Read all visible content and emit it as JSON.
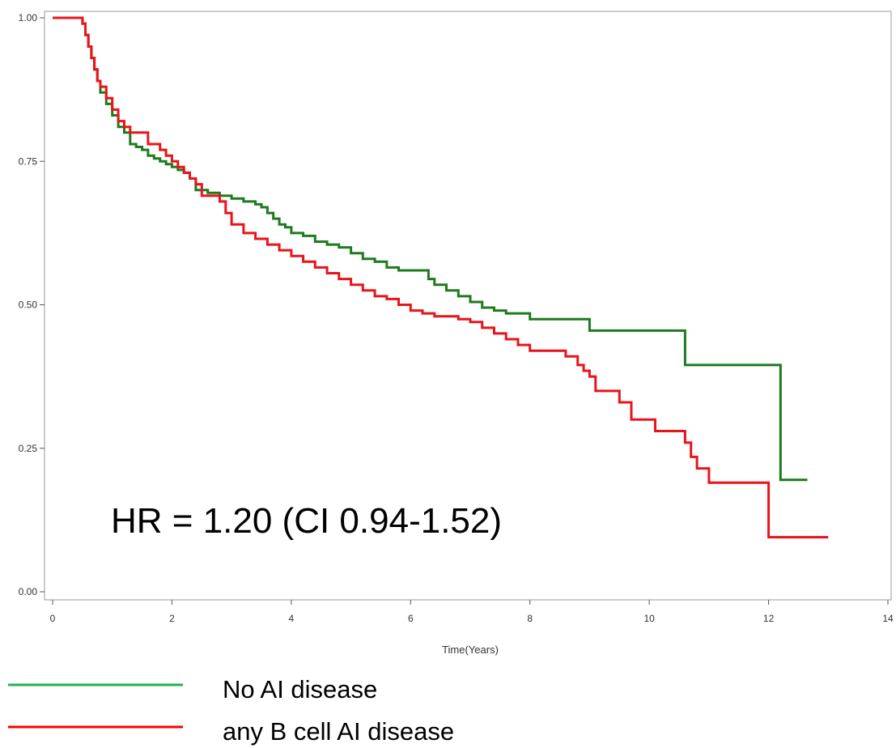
{
  "chart_data": {
    "type": "line",
    "step": true,
    "xlabel": "Time(Years)",
    "ylabel": "",
    "xlim": [
      0,
      14
    ],
    "ylim": [
      0,
      1
    ],
    "xticks": [
      0,
      2,
      4,
      6,
      8,
      10,
      12,
      14
    ],
    "xtick_labels": [
      "0",
      "2",
      "4",
      "6",
      "8",
      "10",
      "12",
      "14"
    ],
    "yticks": [
      0,
      0.25,
      0.5,
      0.75,
      1
    ],
    "ytick_labels": [
      "0.00",
      "0.25",
      "0.50",
      "0.75",
      "1.00"
    ],
    "annotation": "HR = 1.20 (CI 0.94-1.52)",
    "legend_position": "bottom-left",
    "series": [
      {
        "name": "No AI disease",
        "color": "#1f7a1f",
        "legend_color": "#22b14c",
        "x": [
          0,
          0.5,
          0.55,
          0.6,
          0.65,
          0.7,
          0.75,
          0.8,
          0.9,
          1.0,
          1.1,
          1.2,
          1.3,
          1.4,
          1.5,
          1.6,
          1.7,
          1.8,
          1.9,
          2.0,
          2.1,
          2.2,
          2.3,
          2.4,
          2.6,
          2.8,
          3.0,
          3.2,
          3.4,
          3.5,
          3.6,
          3.7,
          3.8,
          3.9,
          4.0,
          4.2,
          4.4,
          4.6,
          4.8,
          5.0,
          5.2,
          5.4,
          5.6,
          5.8,
          6.0,
          6.3,
          6.4,
          6.6,
          6.8,
          7.0,
          7.2,
          7.4,
          7.6,
          8.0,
          8.5,
          9.0,
          9.5,
          10.0,
          10.6,
          11.0,
          12.2,
          12.65
        ],
        "y": [
          1.0,
          0.99,
          0.97,
          0.95,
          0.93,
          0.91,
          0.89,
          0.87,
          0.85,
          0.83,
          0.81,
          0.8,
          0.78,
          0.775,
          0.77,
          0.76,
          0.755,
          0.75,
          0.745,
          0.74,
          0.735,
          0.73,
          0.72,
          0.7,
          0.695,
          0.69,
          0.685,
          0.68,
          0.675,
          0.67,
          0.66,
          0.65,
          0.64,
          0.635,
          0.625,
          0.62,
          0.61,
          0.605,
          0.6,
          0.59,
          0.58,
          0.575,
          0.565,
          0.56,
          0.56,
          0.545,
          0.535,
          0.525,
          0.515,
          0.505,
          0.495,
          0.49,
          0.485,
          0.475,
          0.475,
          0.455,
          0.455,
          0.455,
          0.395,
          0.395,
          0.195,
          0.195
        ]
      },
      {
        "name": "any B cell AI disease",
        "color": "#e8141b",
        "legend_color": "#ff0000",
        "x": [
          0,
          0.5,
          0.55,
          0.6,
          0.65,
          0.7,
          0.75,
          0.8,
          0.9,
          1.0,
          1.1,
          1.2,
          1.3,
          1.4,
          1.6,
          1.8,
          1.9,
          2.0,
          2.1,
          2.2,
          2.3,
          2.4,
          2.5,
          2.8,
          2.9,
          3.0,
          3.2,
          3.4,
          3.6,
          3.8,
          4.0,
          4.2,
          4.4,
          4.6,
          4.8,
          5.0,
          5.2,
          5.4,
          5.6,
          5.8,
          6.0,
          6.2,
          6.4,
          6.6,
          6.8,
          7.0,
          7.2,
          7.4,
          7.6,
          7.8,
          8.0,
          8.2,
          8.6,
          8.8,
          8.9,
          9.0,
          9.1,
          9.5,
          9.7,
          9.8,
          10.1,
          10.6,
          10.7,
          10.8,
          11.0,
          11.2,
          12.0,
          13.0
        ],
        "y": [
          1.0,
          0.99,
          0.97,
          0.95,
          0.93,
          0.91,
          0.89,
          0.88,
          0.86,
          0.84,
          0.82,
          0.81,
          0.8,
          0.8,
          0.78,
          0.77,
          0.76,
          0.75,
          0.74,
          0.73,
          0.72,
          0.71,
          0.69,
          0.68,
          0.66,
          0.64,
          0.625,
          0.615,
          0.605,
          0.595,
          0.585,
          0.575,
          0.565,
          0.555,
          0.545,
          0.535,
          0.525,
          0.515,
          0.51,
          0.5,
          0.49,
          0.485,
          0.48,
          0.48,
          0.475,
          0.47,
          0.46,
          0.45,
          0.44,
          0.43,
          0.42,
          0.42,
          0.41,
          0.395,
          0.385,
          0.375,
          0.35,
          0.33,
          0.3,
          0.3,
          0.28,
          0.26,
          0.235,
          0.215,
          0.19,
          0.19,
          0.095,
          0.095
        ]
      }
    ]
  }
}
